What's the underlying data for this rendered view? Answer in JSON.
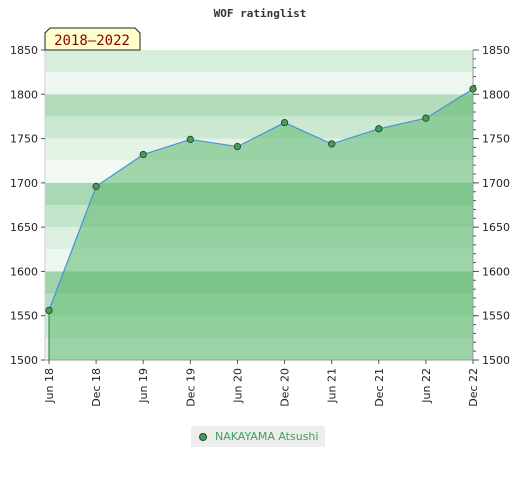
{
  "chart_data": {
    "type": "area",
    "title": "WOF ratinglist",
    "period_label": "2018–2022",
    "x": [
      "Jun 18",
      "Dec 18",
      "Jun 19",
      "Dec 19",
      "Jun 20",
      "Dec 20",
      "Jun 21",
      "Dec 21",
      "Jun 22",
      "Dec 22"
    ],
    "series": [
      {
        "name": "NAKAYAMA Atsushi",
        "values": [
          1556,
          1696,
          1732,
          1749,
          1741,
          1768,
          1744,
          1761,
          1773,
          1806
        ]
      }
    ],
    "ylim": [
      1500,
      1850
    ],
    "yticks": [
      1500,
      1550,
      1600,
      1650,
      1700,
      1750,
      1800,
      1850
    ],
    "y_axis_both_sides": true,
    "legend_position": "bottom-center",
    "colors": {
      "line": "#4a90d9",
      "area": "#5cb870",
      "marker": "#4a9a5a",
      "marker_edge": "#1f4d2a",
      "badge_fill": "#ffffcc",
      "badge_text": "#8b0000",
      "legend_text": "#3fa05a"
    }
  }
}
